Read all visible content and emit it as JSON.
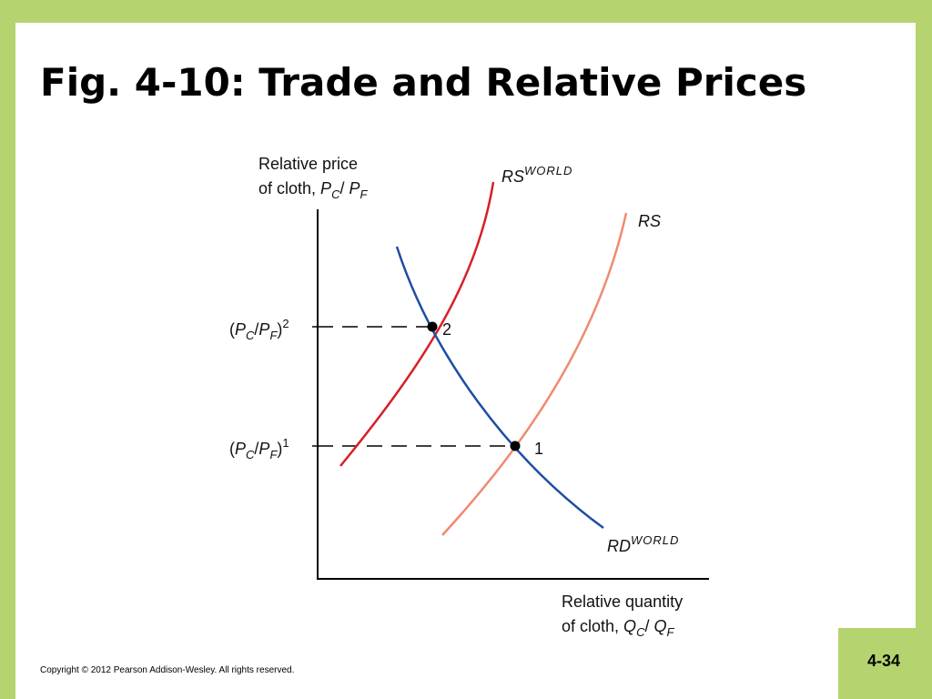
{
  "title": "Fig. 4-10: Trade and Relative Prices",
  "figure": {
    "y_axis_label": [
      "Relative price",
      "of cloth, "
    ],
    "y_axis_symbols": {
      "num": "P",
      "num_sub": "C",
      "den": "P",
      "den_sub": "F"
    },
    "x_axis_label": [
      "Relative quantity",
      "of cloth, "
    ],
    "x_axis_symbols": {
      "num": "Q",
      "num_sub": "C",
      "den": "Q",
      "den_sub": "F"
    },
    "price_levels": [
      {
        "open": "(",
        "num": "P",
        "num_sub": "C",
        "den": "P",
        "den_sub": "F",
        "close": ")",
        "sup": "2"
      },
      {
        "open": "(",
        "num": "P",
        "num_sub": "C",
        "den": "P",
        "den_sub": "F",
        "close": ")",
        "sup": "1"
      }
    ],
    "curves": [
      {
        "name": "RS",
        "sup": "WORLD",
        "color": "#d62027"
      },
      {
        "name": "RS",
        "sup": "",
        "color": "#f08a70"
      },
      {
        "name": "RD",
        "sup": "WORLD",
        "color": "#1f4ea3"
      }
    ],
    "points": [
      "2",
      "1"
    ]
  },
  "copyright": "Copyright © 2012 Pearson Addison-Wesley. All rights reserved.",
  "page_number": "4-34",
  "colors": {
    "frame": "#b5d46f",
    "background": "#ffffff"
  }
}
